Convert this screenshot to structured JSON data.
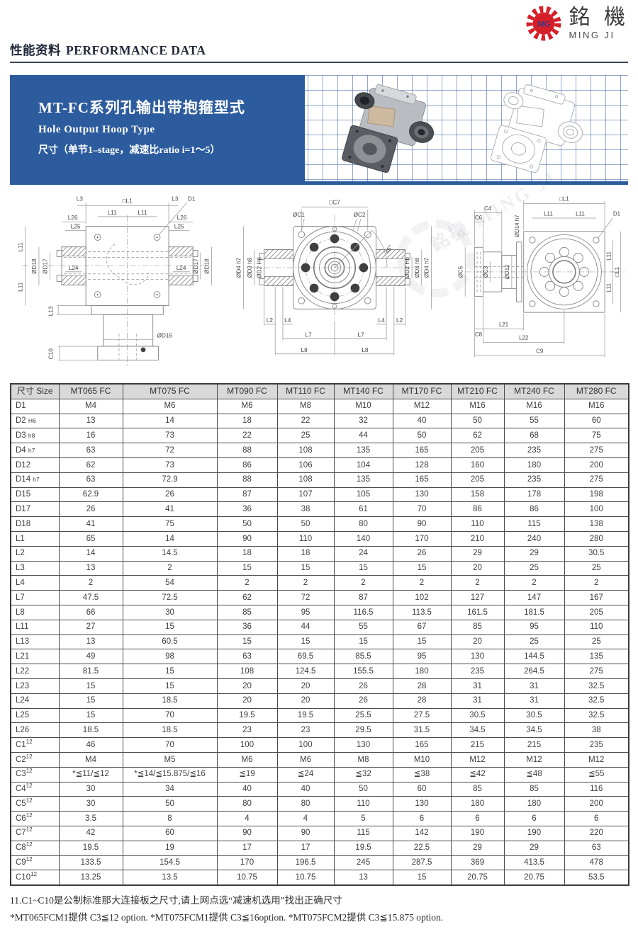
{
  "logo": {
    "monogram": "MG",
    "cjk": "銘 機",
    "latin": "MING JI",
    "red": "#d5202a",
    "blue": "#2b3a8f"
  },
  "section_header": {
    "zh": "性能资料",
    "en": "PERFORMANCE DATA"
  },
  "banner": {
    "title": "MT-FC系列孔输出带抱箍型式",
    "subtitle_en": "Hole Output Hoop Type",
    "subtitle_zh": "尺寸（单节1–stage，减速比ratio i=1～5）",
    "bg_color": "#2d5c9e"
  },
  "watermark": {
    "text": "銘機 MING JI"
  },
  "drawings": {
    "front": {
      "labels": [
        "L3",
        "□L1",
        "L3",
        "D1",
        "L26",
        "L25",
        "L11",
        "L11",
        "L26",
        "L25",
        "L11",
        "L11",
        "ØD18",
        "ØD17",
        "L24",
        "L24",
        "ØD17",
        "ØD18",
        "L13",
        "ØD15",
        "C10"
      ]
    },
    "face": {
      "labels": [
        "□C7",
        "ØC1",
        "ØC2",
        "45°",
        "ØD4 h7",
        "ØD3 h8",
        "ØD2 H6",
        "ØD2 H6",
        "ØD3 h8",
        "ØD4 h7",
        "L2",
        "L4",
        "L4",
        "L2",
        "L7",
        "L7",
        "L8",
        "L8"
      ]
    },
    "side": {
      "labels": [
        "C4",
        "C6",
        "ØD14 h7",
        "□L1",
        "L11",
        "L11",
        "D1",
        "ØC5",
        "ØC3",
        "ØD12",
        "L11",
        "□L1",
        "L11",
        "C8",
        "L21",
        "L22",
        "C9"
      ]
    }
  },
  "table": {
    "columns": [
      "尺寸 Size",
      "MT065 FC",
      "MT075 FC",
      "MT090 FC",
      "MT110 FC",
      "MT140 FC",
      "MT170 FC",
      "MT210 FC",
      "MT240 FC",
      "MT280 FC"
    ],
    "rows": [
      {
        "label": "D1",
        "values": [
          "M4",
          "M6",
          "M6",
          "M8",
          "M10",
          "M12",
          "M16",
          "M16",
          "M16"
        ]
      },
      {
        "label": "D2",
        "tol": "H6",
        "values": [
          "13",
          "14",
          "18",
          "22",
          "32",
          "40",
          "50",
          "55",
          "60"
        ]
      },
      {
        "label": "D3",
        "tol": "h8",
        "values": [
          "16",
          "73",
          "22",
          "25",
          "44",
          "50",
          "62",
          "68",
          "75"
        ]
      },
      {
        "label": "D4",
        "tol": "h7",
        "values": [
          "63",
          "72",
          "88",
          "108",
          "135",
          "165",
          "205",
          "235",
          "275"
        ]
      },
      {
        "label": "D12",
        "values": [
          "62",
          "73",
          "86",
          "106",
          "104",
          "128",
          "160",
          "180",
          "200"
        ]
      },
      {
        "label": "D14",
        "tol": "h7",
        "values": [
          "63",
          "72.9",
          "88",
          "108",
          "135",
          "165",
          "205",
          "235",
          "275"
        ]
      },
      {
        "label": "D15",
        "values": [
          "62.9",
          "26",
          "87",
          "107",
          "105",
          "130",
          "158",
          "178",
          "198"
        ]
      },
      {
        "label": "D17",
        "values": [
          "26",
          "41",
          "36",
          "38",
          "61",
          "70",
          "86",
          "86",
          "100"
        ]
      },
      {
        "label": "D18",
        "values": [
          "41",
          "75",
          "50",
          "50",
          "80",
          "90",
          "110",
          "115",
          "138"
        ]
      },
      {
        "label": "L1",
        "values": [
          "65",
          "14",
          "90",
          "110",
          "140",
          "170",
          "210",
          "240",
          "280"
        ]
      },
      {
        "label": "L2",
        "values": [
          "14",
          "14.5",
          "18",
          "18",
          "24",
          "26",
          "29",
          "29",
          "30.5"
        ]
      },
      {
        "label": "L3",
        "values": [
          "13",
          "2",
          "15",
          "15",
          "15",
          "15",
          "20",
          "25",
          "25"
        ]
      },
      {
        "label": "L4",
        "values": [
          "2",
          "54",
          "2",
          "2",
          "2",
          "2",
          "2",
          "2",
          "2"
        ]
      },
      {
        "label": "L7",
        "values": [
          "47.5",
          "72.5",
          "62",
          "72",
          "87",
          "102",
          "127",
          "147",
          "167"
        ]
      },
      {
        "label": "L8",
        "values": [
          "66",
          "30",
          "85",
          "95",
          "116.5",
          "113.5",
          "161.5",
          "181.5",
          "205"
        ]
      },
      {
        "label": "L11",
        "values": [
          "27",
          "15",
          "36",
          "44",
          "55",
          "67",
          "85",
          "95",
          "110"
        ]
      },
      {
        "label": "L13",
        "values": [
          "13",
          "60.5",
          "15",
          "15",
          "15",
          "15",
          "20",
          "25",
          "25"
        ]
      },
      {
        "label": "L21",
        "values": [
          "49",
          "98",
          "63",
          "69.5",
          "85.5",
          "95",
          "130",
          "144.5",
          "135"
        ]
      },
      {
        "label": "L22",
        "values": [
          "81.5",
          "15",
          "108",
          "124.5",
          "155.5",
          "180",
          "235",
          "264.5",
          "275"
        ]
      },
      {
        "label": "L23",
        "values": [
          "15",
          "15",
          "20",
          "20",
          "26",
          "28",
          "31",
          "31",
          "32.5"
        ]
      },
      {
        "label": "L24",
        "values": [
          "15",
          "18.5",
          "20",
          "20",
          "26",
          "28",
          "31",
          "31",
          "32.5"
        ]
      },
      {
        "label": "L25",
        "values": [
          "15",
          "70",
          "19.5",
          "19.5",
          "25.5",
          "27.5",
          "30.5",
          "30.5",
          "32.5"
        ]
      },
      {
        "label": "L26",
        "values": [
          "18.5",
          "18.5",
          "23",
          "23",
          "29.5",
          "31.5",
          "34.5",
          "34.5",
          "38"
        ]
      },
      {
        "label": "C1",
        "sup": "12",
        "values": [
          "46",
          "70",
          "100",
          "100",
          "130",
          "165",
          "215",
          "215",
          "235"
        ]
      },
      {
        "label": "C2",
        "sup": "12",
        "values": [
          "M4",
          "M5",
          "M6",
          "M6",
          "M8",
          "M10",
          "M12",
          "M12",
          "M12"
        ]
      },
      {
        "label": "C3",
        "sup": "12",
        "values": [
          "*≦11/≦12",
          "*≦14/≦15.875/≦16",
          "≦19",
          "≦24",
          "≦32",
          "≦38",
          "≦42",
          "≦48",
          "≦55"
        ]
      },
      {
        "label": "C4",
        "sup": "12",
        "values": [
          "30",
          "34",
          "40",
          "40",
          "50",
          "60",
          "85",
          "85",
          "116"
        ]
      },
      {
        "label": "C5",
        "sup": "12",
        "values": [
          "30",
          "50",
          "80",
          "80",
          "110",
          "130",
          "180",
          "180",
          "200"
        ]
      },
      {
        "label": "C6",
        "sup": "12",
        "values": [
          "3.5",
          "8",
          "4",
          "4",
          "5",
          "6",
          "6",
          "6",
          "6"
        ]
      },
      {
        "label": "C7",
        "sup": "12",
        "values": [
          "42",
          "60",
          "90",
          "90",
          "115",
          "142",
          "190",
          "190",
          "220"
        ]
      },
      {
        "label": "C8",
        "sup": "12",
        "values": [
          "19.5",
          "19",
          "17",
          "17",
          "19.5",
          "22.5",
          "29",
          "29",
          "63"
        ]
      },
      {
        "label": "C9",
        "sup": "12",
        "values": [
          "133.5",
          "154.5",
          "170",
          "196.5",
          "245",
          "287.5",
          "369",
          "413.5",
          "478"
        ]
      },
      {
        "label": "C10",
        "sup": "12",
        "values": [
          "13.25",
          "13.5",
          "10.75",
          "10.75",
          "13",
          "15",
          "20.75",
          "20.75",
          "53.5"
        ]
      }
    ]
  },
  "notes": [
    "11.C1~C10是公制标准那大连接板之尺寸,请上网点选“减速机选用”找出正确尺寸",
    "*MT065FCM1提供  C3≦12 option.  *MT075FCM1提供  C3≦16option.  *MT075FCM2提供  C3≦15.875 option."
  ]
}
